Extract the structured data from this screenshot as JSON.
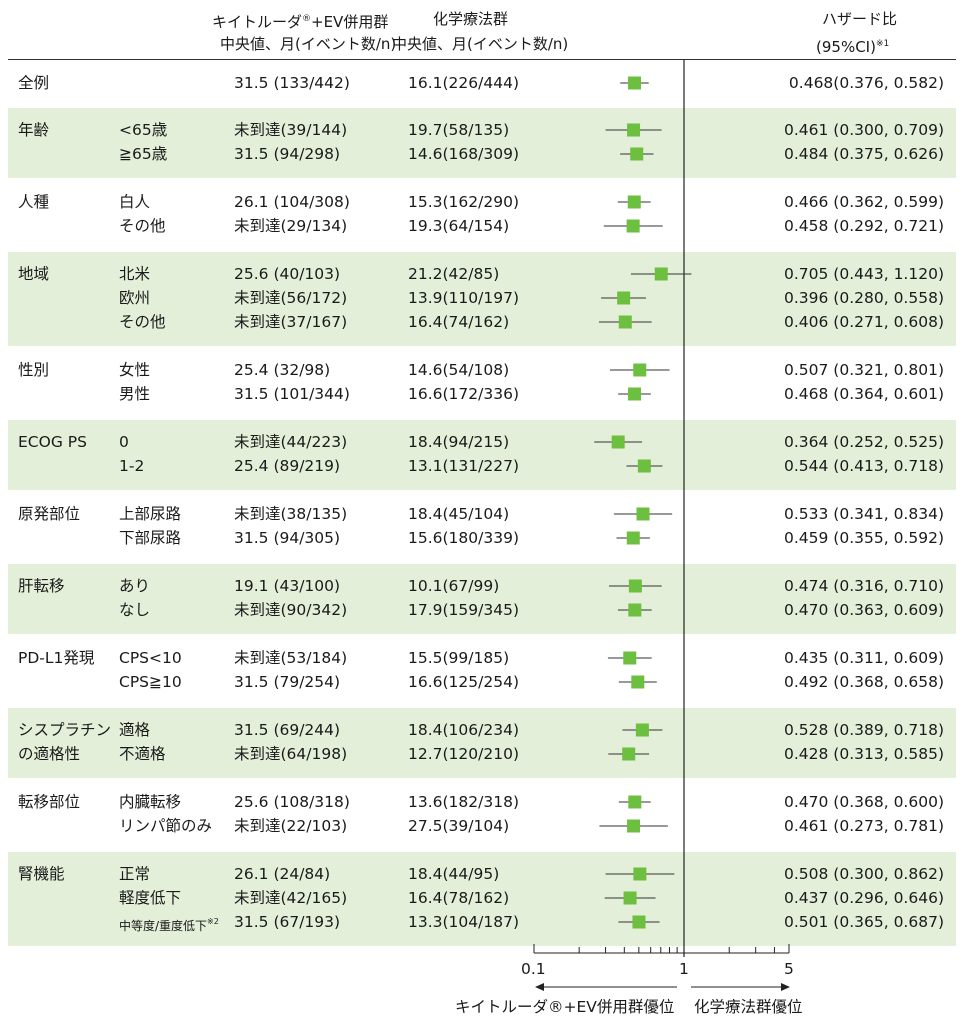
{
  "header": {
    "ev_title": "キイトルーダ",
    "ev_title_sup": "®",
    "ev_title_rest": "+EV併用群",
    "ev_sub": "中央値、月(イベント数/n)",
    "chemo_title": "化学療法群",
    "chemo_sub": "中央値、月(イベント数/n)",
    "hr_title": "ハザード比",
    "hr_sub": "(95%CI)",
    "hr_sub_note": "※1"
  },
  "rows": [
    {
      "group": "全例",
      "sub": "",
      "ev": "31.5 (133/442)",
      "chemo": "16.1(226/444)",
      "hr": "0.468(0.376, 0.582)"
    },
    {
      "group": "年齢",
      "sub": "<65歳",
      "ev": "未到達(39/144)",
      "chemo": "19.7(58/135)",
      "hr": "0.461 (0.300, 0.709)"
    },
    {
      "group": "",
      "sub": "≧65歳",
      "ev": "31.5 (94/298)",
      "chemo": "14.6(168/309)",
      "hr": "0.484 (0.375, 0.626)"
    },
    {
      "group": "人種",
      "sub": "白人",
      "ev": "26.1 (104/308)",
      "chemo": "15.3(162/290)",
      "hr": "0.466 (0.362, 0.599)"
    },
    {
      "group": "",
      "sub": "その他",
      "ev": "未到達(29/134)",
      "chemo": "19.3(64/154)",
      "hr": "0.458 (0.292, 0.721)"
    },
    {
      "group": "地域",
      "sub": "北米",
      "ev": "25.6 (40/103)",
      "chemo": "21.2(42/85)",
      "hr": "0.705 (0.443, 1.120)"
    },
    {
      "group": "",
      "sub": "欧州",
      "ev": "未到達(56/172)",
      "chemo": "13.9(110/197)",
      "hr": "0.396 (0.280, 0.558)"
    },
    {
      "group": "",
      "sub": "その他",
      "ev": "未到達(37/167)",
      "chemo": "16.4(74/162)",
      "hr": "0.406 (0.271, 0.608)"
    },
    {
      "group": "性別",
      "sub": "女性",
      "ev": "25.4 (32/98)",
      "chemo": "14.6(54/108)",
      "hr": "0.507 (0.321, 0.801)"
    },
    {
      "group": "",
      "sub": "男性",
      "ev": "31.5 (101/344)",
      "chemo": "16.6(172/336)",
      "hr": "0.468 (0.364, 0.601)"
    },
    {
      "group": "ECOG PS",
      "sub": "0",
      "ev": "未到達(44/223)",
      "chemo": "18.4(94/215)",
      "hr": "0.364 (0.252, 0.525)"
    },
    {
      "group": "",
      "sub": "1-2",
      "ev": "25.4 (89/219)",
      "chemo": "13.1(131/227)",
      "hr": "0.544 (0.413, 0.718)"
    },
    {
      "group": "原発部位",
      "sub": "上部尿路",
      "ev": "未到達(38/135)",
      "chemo": "18.4(45/104)",
      "hr": "0.533 (0.341, 0.834)"
    },
    {
      "group": "",
      "sub": "下部尿路",
      "ev": "31.5 (94/305)",
      "chemo": "15.6(180/339)",
      "hr": "0.459 (0.355, 0.592)"
    },
    {
      "group": "肝転移",
      "sub": "あり",
      "ev": "19.1 (43/100)",
      "chemo": "10.1(67/99)",
      "hr": "0.474 (0.316, 0.710)"
    },
    {
      "group": "",
      "sub": "なし",
      "ev": "未到達(90/342)",
      "chemo": "17.9(159/345)",
      "hr": "0.470 (0.363, 0.609)"
    },
    {
      "group": "PD-L1発現",
      "sub": "CPS<10",
      "ev": "未到達(53/184)",
      "chemo": "15.5(99/185)",
      "hr": "0.435 (0.311, 0.609)"
    },
    {
      "group": "",
      "sub": "CPS≧10",
      "ev": "31.5 (79/254)",
      "chemo": "16.6(125/254)",
      "hr": "0.492 (0.368, 0.658)"
    },
    {
      "group": "シスプラチン",
      "sub": "適格",
      "ev": "31.5 (69/244)",
      "chemo": "18.4(106/234)",
      "hr": "0.528 (0.389, 0.718)"
    },
    {
      "group": "の適格性",
      "sub": "不適格",
      "ev": "未到達(64/198)",
      "chemo": "12.7(120/210)",
      "hr": "0.428 (0.313, 0.585)"
    },
    {
      "group": "転移部位",
      "sub": "内臓転移",
      "ev": "25.6 (108/318)",
      "chemo": "13.6(182/318)",
      "hr": "0.470 (0.368, 0.600)"
    },
    {
      "group": "",
      "sub": "リンパ節のみ",
      "ev": "未到達(22/103)",
      "chemo": "27.5(39/104)",
      "hr": "0.461 (0.273, 0.781)"
    },
    {
      "group": "腎機能",
      "sub": "正常",
      "ev": "26.1 (24/84)",
      "chemo": "18.4(44/95)",
      "hr": "0.508 (0.300, 0.862)"
    },
    {
      "group": "",
      "sub": "軽度低下",
      "ev": "未到達(42/165)",
      "chemo": "16.4(78/162)",
      "hr": "0.437 (0.296, 0.646)"
    },
    {
      "group": "",
      "sub": "中等度/重度低下",
      "sub_note": "※2",
      "ev": "31.5 (67/193)",
      "chemo": "13.3(104/187)",
      "hr": "0.501 (0.365, 0.687)"
    }
  ],
  "chart_data": {
    "type": "scatter",
    "title": "",
    "xlabel": "",
    "ylabel": "",
    "x_scale": "log",
    "xlim": [
      0.1,
      5
    ],
    "x_ticks": [
      "0.1",
      "1",
      "5"
    ],
    "reference_line": 1,
    "favor_left": "キイトルーダ®+EV併用群優位",
    "favor_right": "化学療法群優位",
    "marker_color": "#6cbf3f",
    "shade_color": "#e4efd9",
    "points": [
      {
        "label": "全例",
        "hr": 0.468,
        "lo": 0.376,
        "hi": 0.582
      },
      {
        "label": "<65歳",
        "hr": 0.461,
        "lo": 0.3,
        "hi": 0.709
      },
      {
        "label": "≧65歳",
        "hr": 0.484,
        "lo": 0.375,
        "hi": 0.626
      },
      {
        "label": "白人",
        "hr": 0.466,
        "lo": 0.362,
        "hi": 0.599
      },
      {
        "label": "その他",
        "hr": 0.458,
        "lo": 0.292,
        "hi": 0.721
      },
      {
        "label": "北米",
        "hr": 0.705,
        "lo": 0.443,
        "hi": 1.12
      },
      {
        "label": "欧州",
        "hr": 0.396,
        "lo": 0.28,
        "hi": 0.558
      },
      {
        "label": "その他",
        "hr": 0.406,
        "lo": 0.271,
        "hi": 0.608
      },
      {
        "label": "女性",
        "hr": 0.507,
        "lo": 0.321,
        "hi": 0.801
      },
      {
        "label": "男性",
        "hr": 0.468,
        "lo": 0.364,
        "hi": 0.601
      },
      {
        "label": "0",
        "hr": 0.364,
        "lo": 0.252,
        "hi": 0.525
      },
      {
        "label": "1-2",
        "hr": 0.544,
        "lo": 0.413,
        "hi": 0.718
      },
      {
        "label": "上部尿路",
        "hr": 0.533,
        "lo": 0.341,
        "hi": 0.834
      },
      {
        "label": "下部尿路",
        "hr": 0.459,
        "lo": 0.355,
        "hi": 0.592
      },
      {
        "label": "あり",
        "hr": 0.474,
        "lo": 0.316,
        "hi": 0.71
      },
      {
        "label": "なし",
        "hr": 0.47,
        "lo": 0.363,
        "hi": 0.609
      },
      {
        "label": "CPS<10",
        "hr": 0.435,
        "lo": 0.311,
        "hi": 0.609
      },
      {
        "label": "CPS≧10",
        "hr": 0.492,
        "lo": 0.368,
        "hi": 0.658
      },
      {
        "label": "適格",
        "hr": 0.528,
        "lo": 0.389,
        "hi": 0.718
      },
      {
        "label": "不適格",
        "hr": 0.428,
        "lo": 0.313,
        "hi": 0.585
      },
      {
        "label": "内臓転移",
        "hr": 0.47,
        "lo": 0.368,
        "hi": 0.6
      },
      {
        "label": "リンパ節のみ",
        "hr": 0.461,
        "lo": 0.273,
        "hi": 0.781
      },
      {
        "label": "正常",
        "hr": 0.508,
        "lo": 0.3,
        "hi": 0.862
      },
      {
        "label": "軽度低下",
        "hr": 0.437,
        "lo": 0.296,
        "hi": 0.646
      },
      {
        "label": "中等度/重度低下",
        "hr": 0.501,
        "lo": 0.365,
        "hi": 0.687
      }
    ]
  }
}
